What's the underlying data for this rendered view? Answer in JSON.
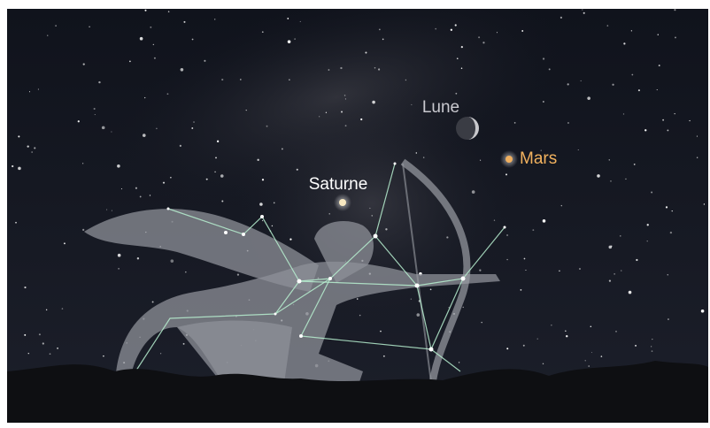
{
  "labels": {
    "moon": "Lune",
    "mars": "Mars",
    "saturn": "Saturne"
  }
}
